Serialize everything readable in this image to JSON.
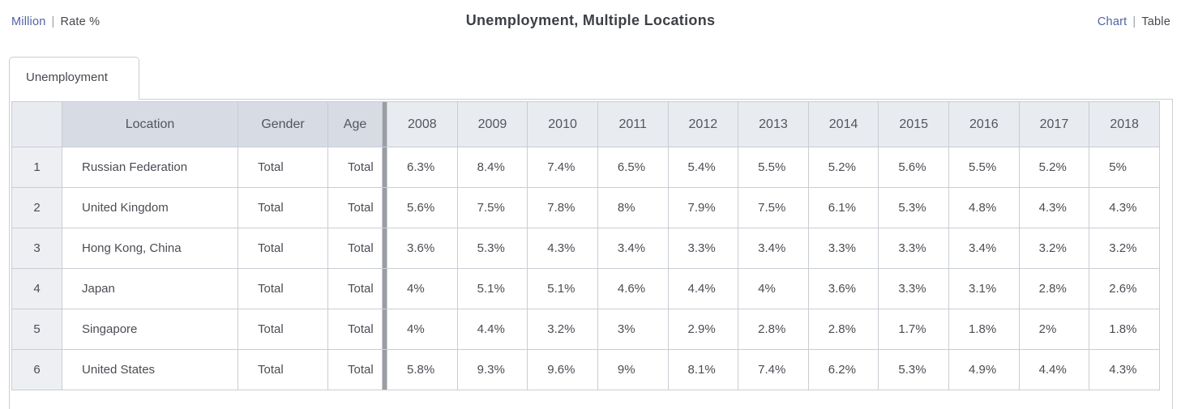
{
  "header": {
    "unit_switch": {
      "million": "Million",
      "rate": "Rate %",
      "separator": "|"
    },
    "title": "Unemployment, Multiple Locations",
    "view_switch": {
      "chart": "Chart",
      "table": "Table",
      "separator": "|"
    }
  },
  "tab_label": "Unemployment",
  "table": {
    "index_header": "",
    "meta_headers": [
      "Location",
      "Gender",
      "Age"
    ],
    "year_headers": [
      "2008",
      "2009",
      "2010",
      "2011",
      "2012",
      "2013",
      "2014",
      "2015",
      "2016",
      "2017",
      "2018"
    ],
    "rows": [
      {
        "index": "1",
        "location": "Russian Federation",
        "gender": "Total",
        "age": "Total",
        "values": [
          "6.3%",
          "8.4%",
          "7.4%",
          "6.5%",
          "5.4%",
          "5.5%",
          "5.2%",
          "5.6%",
          "5.5%",
          "5.2%",
          "5%"
        ]
      },
      {
        "index": "2",
        "location": "United Kingdom",
        "gender": "Total",
        "age": "Total",
        "values": [
          "5.6%",
          "7.5%",
          "7.8%",
          "8%",
          "7.9%",
          "7.5%",
          "6.1%",
          "5.3%",
          "4.8%",
          "4.3%",
          "4.3%"
        ]
      },
      {
        "index": "3",
        "location": "Hong Kong, China",
        "gender": "Total",
        "age": "Total",
        "values": [
          "3.6%",
          "5.3%",
          "4.3%",
          "3.4%",
          "3.3%",
          "3.4%",
          "3.3%",
          "3.3%",
          "3.4%",
          "3.2%",
          "3.2%"
        ]
      },
      {
        "index": "4",
        "location": "Japan",
        "gender": "Total",
        "age": "Total",
        "values": [
          "4%",
          "5.1%",
          "5.1%",
          "4.6%",
          "4.4%",
          "4%",
          "3.6%",
          "3.3%",
          "3.1%",
          "2.8%",
          "2.6%"
        ]
      },
      {
        "index": "5",
        "location": "Singapore",
        "gender": "Total",
        "age": "Total",
        "values": [
          "4%",
          "4.4%",
          "3.2%",
          "3%",
          "2.9%",
          "2.8%",
          "2.8%",
          "1.7%",
          "1.8%",
          "2%",
          "1.8%"
        ]
      },
      {
        "index": "6",
        "location": "United States",
        "gender": "Total",
        "age": "Total",
        "values": [
          "5.8%",
          "9.3%",
          "9.6%",
          "9%",
          "8.1%",
          "7.4%",
          "6.2%",
          "5.3%",
          "4.9%",
          "4.4%",
          "4.3%"
        ]
      }
    ]
  },
  "colors": {
    "link": "#5163a5",
    "text": "#4a4d53",
    "title": "#3d4046",
    "border": "#c9cdd3",
    "header_meta_bg": "#d6dbe4",
    "header_year_bg": "#e8ebf0",
    "index_bg": "#edeff3",
    "divider": "#9a9ea3"
  }
}
